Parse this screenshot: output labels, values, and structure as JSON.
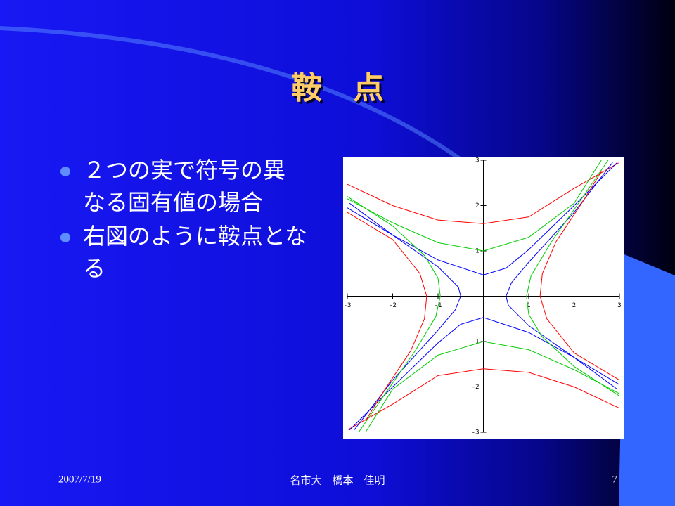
{
  "slide": {
    "title": "鞍　点",
    "bullets": [
      [
        "２つの実で符号の異",
        "なる固有値の場合"
      ],
      [
        "右図のように鞍点とな",
        "る"
      ]
    ],
    "footer": {
      "date": "2007/7/19",
      "author": "名市大　橋本　佳明",
      "page": "7"
    }
  },
  "chart_data": {
    "type": "line",
    "xlim": [
      -3,
      3
    ],
    "ylim": [
      -3,
      3
    ],
    "xticks": [
      -3,
      -2,
      -1,
      1,
      2,
      3
    ],
    "yticks": [
      -3,
      -2,
      -1,
      1,
      2,
      3
    ],
    "series": [
      {
        "color": "#ff0000",
        "x": [
          -3,
          -2,
          -1,
          0,
          1,
          2,
          2.98
        ],
        "values": [
          2.47,
          2.0,
          1.68,
          1.6,
          1.75,
          2.38,
          2.94
        ]
      },
      {
        "color": "#ff0000",
        "x": [
          3,
          2,
          1,
          0,
          -1,
          -2,
          -2.98
        ],
        "values": [
          -2.47,
          -2.0,
          -1.68,
          -1.6,
          -1.75,
          -2.38,
          -2.94
        ]
      },
      {
        "color": "#00cc00",
        "x": [
          -3,
          -2,
          -1,
          0,
          1,
          2,
          2.6
        ],
        "values": [
          2.15,
          1.62,
          1.18,
          1.0,
          1.3,
          2.05,
          3.0
        ]
      },
      {
        "color": "#00cc00",
        "x": [
          3,
          2,
          1,
          0,
          -1,
          -2,
          -2.6
        ],
        "values": [
          -2.15,
          -1.62,
          -1.18,
          -1.0,
          -1.3,
          -2.05,
          -3.0
        ]
      },
      {
        "color": "#0000ff",
        "x": [
          -3,
          -2,
          -1,
          0,
          0.5,
          1,
          2,
          2.95
        ],
        "values": [
          1.95,
          1.35,
          0.8,
          0.47,
          0.62,
          1.03,
          2.0,
          2.95
        ]
      },
      {
        "color": "#0000ff",
        "x": [
          3,
          2,
          1,
          0,
          -0.5,
          -1,
          -2,
          -2.95
        ],
        "values": [
          -1.95,
          -1.35,
          -0.8,
          -0.47,
          -0.62,
          -1.03,
          -2.0,
          -2.95
        ]
      },
      {
        "color": "#0000ff",
        "x": [
          2.95,
          2,
          1,
          0.55,
          0.5,
          0.62,
          1,
          2,
          2.85
        ],
        "values": [
          -2.05,
          -1.35,
          -0.65,
          -0.2,
          0,
          0.3,
          0.75,
          1.85,
          2.95
        ]
      },
      {
        "color": "#0000ff",
        "x": [
          -2.95,
          -2,
          -1,
          -0.55,
          -0.5,
          -0.62,
          -1,
          -2,
          -2.85
        ],
        "values": [
          2.05,
          1.35,
          0.65,
          0.2,
          0,
          -0.3,
          -0.75,
          -1.85,
          -2.95
        ]
      },
      {
        "color": "#00cc00",
        "x": [
          3,
          2,
          1.3,
          1.0,
          0.95,
          1.05,
          1.5,
          2.2,
          2.75
        ],
        "values": [
          -2.2,
          -1.55,
          -0.9,
          -0.4,
          0,
          0.45,
          1.2,
          2.2,
          3.0
        ]
      },
      {
        "color": "#00cc00",
        "x": [
          -3,
          -2,
          -1.3,
          -1.0,
          -0.95,
          -1.05,
          -1.5,
          -2.2,
          -2.75
        ],
        "values": [
          2.2,
          1.55,
          0.9,
          0.4,
          0,
          -0.45,
          -1.2,
          -2.2,
          -3.0
        ]
      },
      {
        "color": "#ff0000",
        "x": [
          3,
          2,
          1.4,
          1.25,
          1.3,
          1.6,
          2.2,
          2.6
        ],
        "values": [
          -1.85,
          -1.25,
          -0.5,
          0,
          0.5,
          1.2,
          2.1,
          2.75
        ]
      },
      {
        "color": "#ff0000",
        "x": [
          -3,
          -2,
          -1.4,
          -1.25,
          -1.3,
          -1.6,
          -2.2,
          -2.6
        ],
        "values": [
          1.85,
          1.25,
          0.5,
          0,
          -0.5,
          -1.2,
          -2.1,
          -2.75
        ]
      }
    ]
  }
}
